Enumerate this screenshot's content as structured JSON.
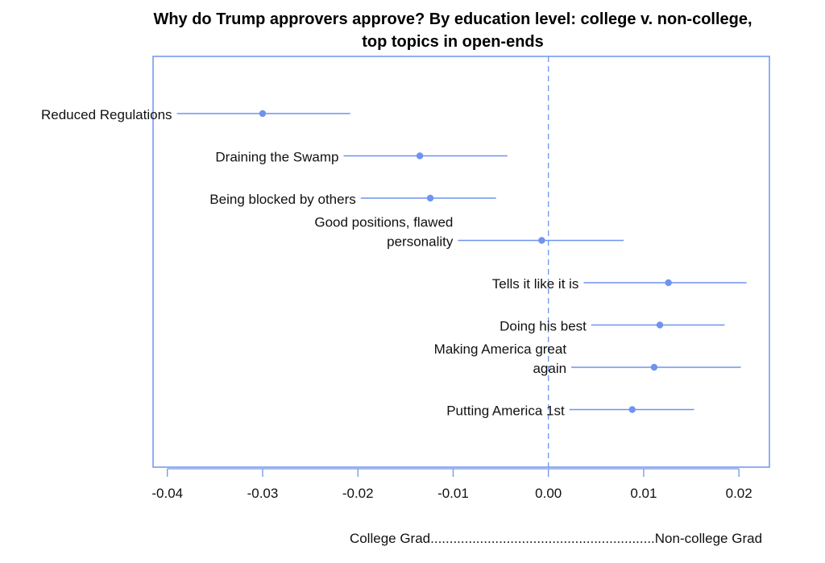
{
  "chart_data": {
    "type": "scatter",
    "title": "Why do Trump approvers approve? By education level: college v. non-college,",
    "subtitle": "top topics in open-ends",
    "xlabel": "College Grad...........................................................Non-college Grad",
    "xlim": [
      -0.0415,
      0.0232
    ],
    "ticks": [
      {
        "value": -0.04,
        "label": "-0.04"
      },
      {
        "value": -0.03,
        "label": "-0.03"
      },
      {
        "value": -0.02,
        "label": "-0.02"
      },
      {
        "value": -0.01,
        "label": "-0.01"
      },
      {
        "value": 0.0,
        "label": "0.00"
      },
      {
        "value": 0.01,
        "label": "0.01"
      },
      {
        "value": 0.02,
        "label": "0.02"
      }
    ],
    "reference_line": 0.0,
    "grid": false,
    "points": [
      {
        "label_lines": [
          "Reduced Regulations"
        ],
        "estimate": -0.03,
        "low": -0.039,
        "high": -0.0208
      },
      {
        "label_lines": [
          "Draining the Swamp"
        ],
        "estimate": -0.0135,
        "low": -0.0215,
        "high": -0.0043
      },
      {
        "label_lines": [
          "Being blocked by others"
        ],
        "estimate": -0.0124,
        "low": -0.0197,
        "high": -0.0055
      },
      {
        "label_lines": [
          "Good positions, flawed",
          "personality"
        ],
        "estimate": -0.0007,
        "low": -0.0095,
        "high": 0.0079
      },
      {
        "label_lines": [
          "Tells it like it is"
        ],
        "estimate": 0.0126,
        "low": 0.0037,
        "high": 0.0208
      },
      {
        "label_lines": [
          "Doing his best"
        ],
        "estimate": 0.0117,
        "low": 0.0045,
        "high": 0.0185
      },
      {
        "label_lines": [
          "Making America great",
          "again"
        ],
        "estimate": 0.0111,
        "low": 0.0024,
        "high": 0.0202
      },
      {
        "label_lines": [
          "Putting America 1st"
        ],
        "estimate": 0.0088,
        "low": 0.0022,
        "high": 0.0153
      }
    ],
    "colors": {
      "frame": "#6e94ee",
      "point": "#6e94ee",
      "ci": "#6e94ee",
      "reference": "#6e94ee",
      "text": "#111111"
    }
  }
}
